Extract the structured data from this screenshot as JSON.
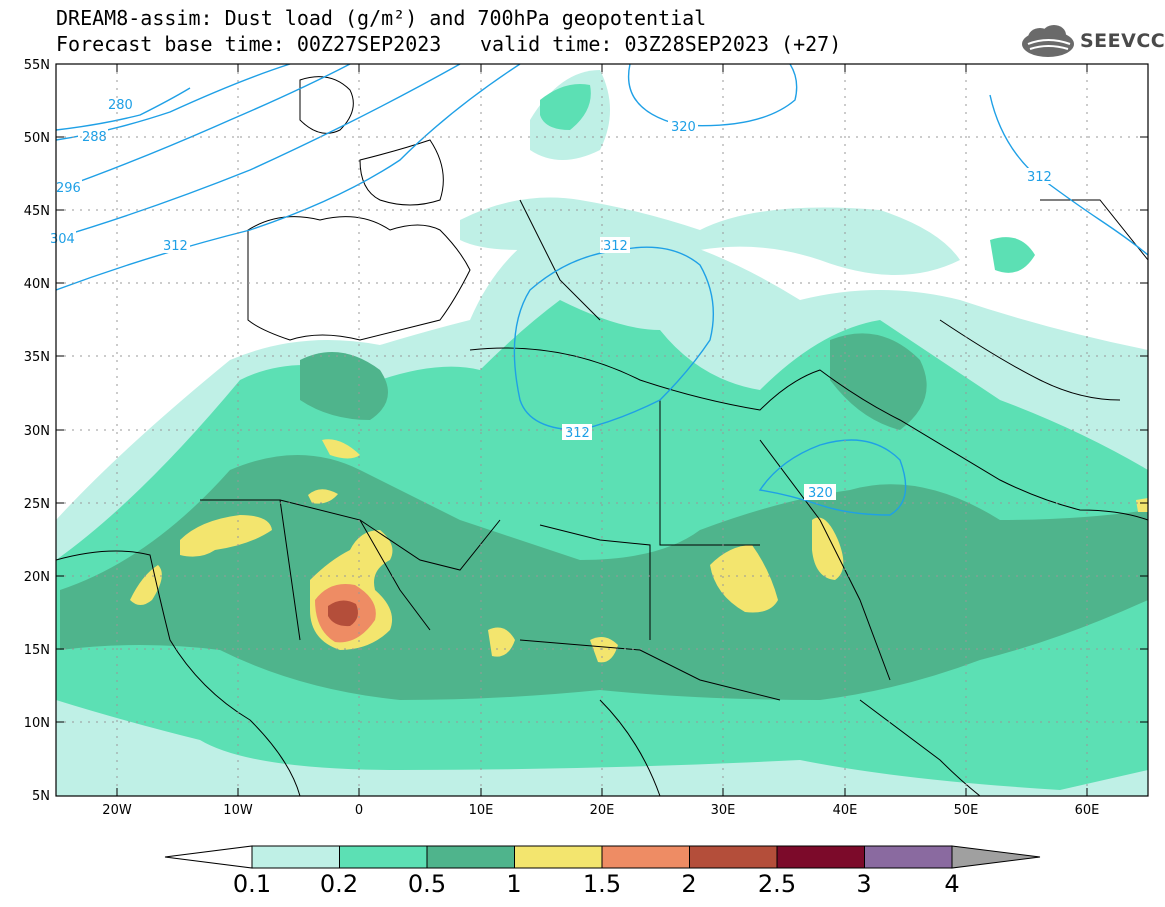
{
  "header": {
    "title_line1": "DREAM8-assim: Dust load (g/m²) and 700hPa geopotential",
    "title_line2": "Forecast base time: 00Z27SEP2023",
    "valid_time": "valid time: 03Z28SEP2023 (+27)"
  },
  "logo": {
    "text": "SEEVCCC",
    "icon": "cloud-logo-icon"
  },
  "map": {
    "lat_labels": [
      "55N",
      "50N",
      "45N",
      "40N",
      "35N",
      "30N",
      "25N",
      "20N",
      "15N",
      "10N",
      "5N"
    ],
    "lon_labels": [
      "20W",
      "10W",
      "0",
      "10E",
      "20E",
      "30E",
      "40E",
      "50E",
      "60E"
    ],
    "contour_labels": [
      "280",
      "288",
      "296",
      "304",
      "312",
      "320",
      "312",
      "320",
      "312",
      "312"
    ]
  },
  "colorbar": {
    "labels": [
      "0.1",
      "0.2",
      "0.5",
      "1",
      "1.5",
      "2",
      "2.5",
      "3",
      "4"
    ],
    "colors": [
      "#bff0e6",
      "#5ce0b4",
      "#4fb48c",
      "#f3e56e",
      "#ee8c64",
      "#b44e3a",
      "#7c0a2a",
      "#8a6aa0",
      "#a0a0a0"
    ]
  },
  "colors": {
    "dust_low": "#bff0e6",
    "dust_mid": "#5ce0b4",
    "dust_med": "#4fb48c",
    "dust_high": "#f3e56e",
    "dust_vhigh": "#ee8c64",
    "dust_ext": "#b44e3a",
    "contour": "#1fa0e6"
  }
}
